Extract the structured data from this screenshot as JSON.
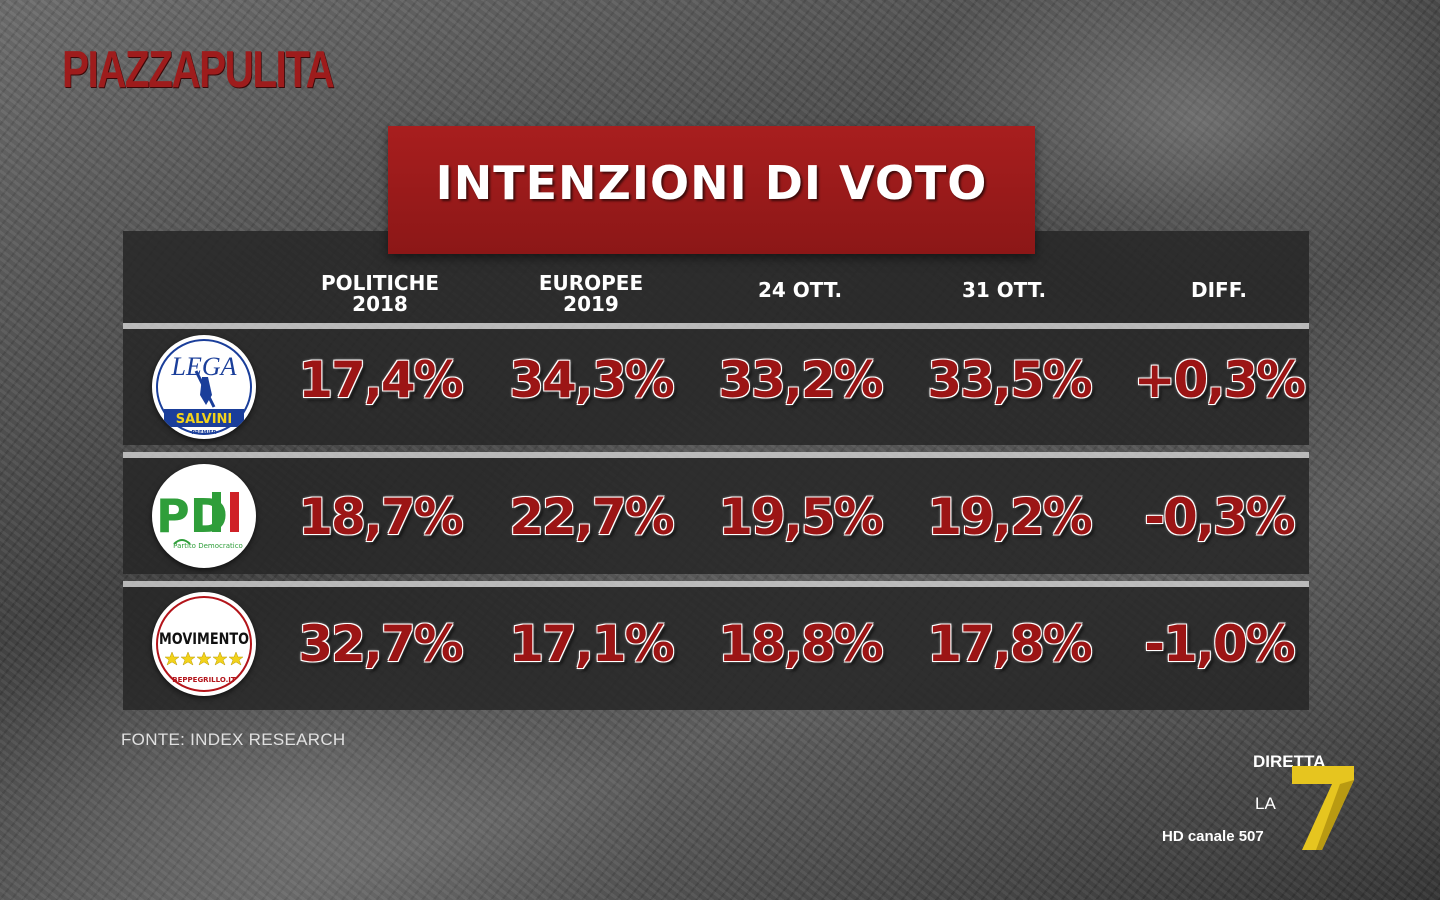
{
  "brand": {
    "show_name": "PIAZZAPULITA",
    "brand_color": "#9e1c1c"
  },
  "title": "INTENZIONI DI VOTO",
  "columns": [
    "POLITICHE\n2018",
    "EUROPEE\n2019",
    "24 OTT.",
    "31 OTT.",
    "DIFF."
  ],
  "rows": [
    {
      "party_logo": "lega-salvini-premier-logo",
      "logo_text": {
        "top": "LEGA",
        "band": "SALVINI",
        "sub": "PREMIER"
      },
      "values": [
        "17,4%",
        "34,3%",
        "33,2%",
        "33,5%",
        "+0,3%"
      ]
    },
    {
      "party_logo": "partito-democratico-logo",
      "logo_text": {
        "top": "PD",
        "band": "Partito Democratico"
      },
      "values": [
        "18,7%",
        "22,7%",
        "19,5%",
        "19,2%",
        "-0,3%"
      ]
    },
    {
      "party_logo": "movimento-5-stelle-logo",
      "logo_text": {
        "top": "MOVIMENTO",
        "band": "BEPPEGRILLO.IT"
      },
      "values": [
        "32,7%",
        "17,1%",
        "18,8%",
        "17,8%",
        "-1,0%"
      ]
    }
  ],
  "source": "FONTE: INDEX RESEARCH",
  "channel": {
    "live": "DIRETTA",
    "name": "LA",
    "number": "7",
    "hd": "HD canale 507"
  },
  "colors": {
    "title_bg": "#a11c1c",
    "value_text": "#9c1515",
    "table_bg": "#262626",
    "la7_yellow": "#e6c51f"
  },
  "chart_data": {
    "type": "table",
    "title": "INTENZIONI DI VOTO",
    "categories": [
      "POLITICHE 2018",
      "EUROPEE 2019",
      "24 OTT.",
      "31 OTT.",
      "DIFF."
    ],
    "series": [
      {
        "name": "LEGA SALVINI PREMIER",
        "values": [
          17.4,
          34.3,
          33.2,
          33.5,
          0.3
        ]
      },
      {
        "name": "PD Partito Democratico",
        "values": [
          18.7,
          22.7,
          19.5,
          19.2,
          -0.3
        ]
      },
      {
        "name": "MOVIMENTO 5 STELLE",
        "values": [
          32.7,
          17.1,
          18.8,
          17.8,
          -1.0
        ]
      }
    ],
    "unit": "%",
    "source": "FONTE: INDEX RESEARCH"
  }
}
